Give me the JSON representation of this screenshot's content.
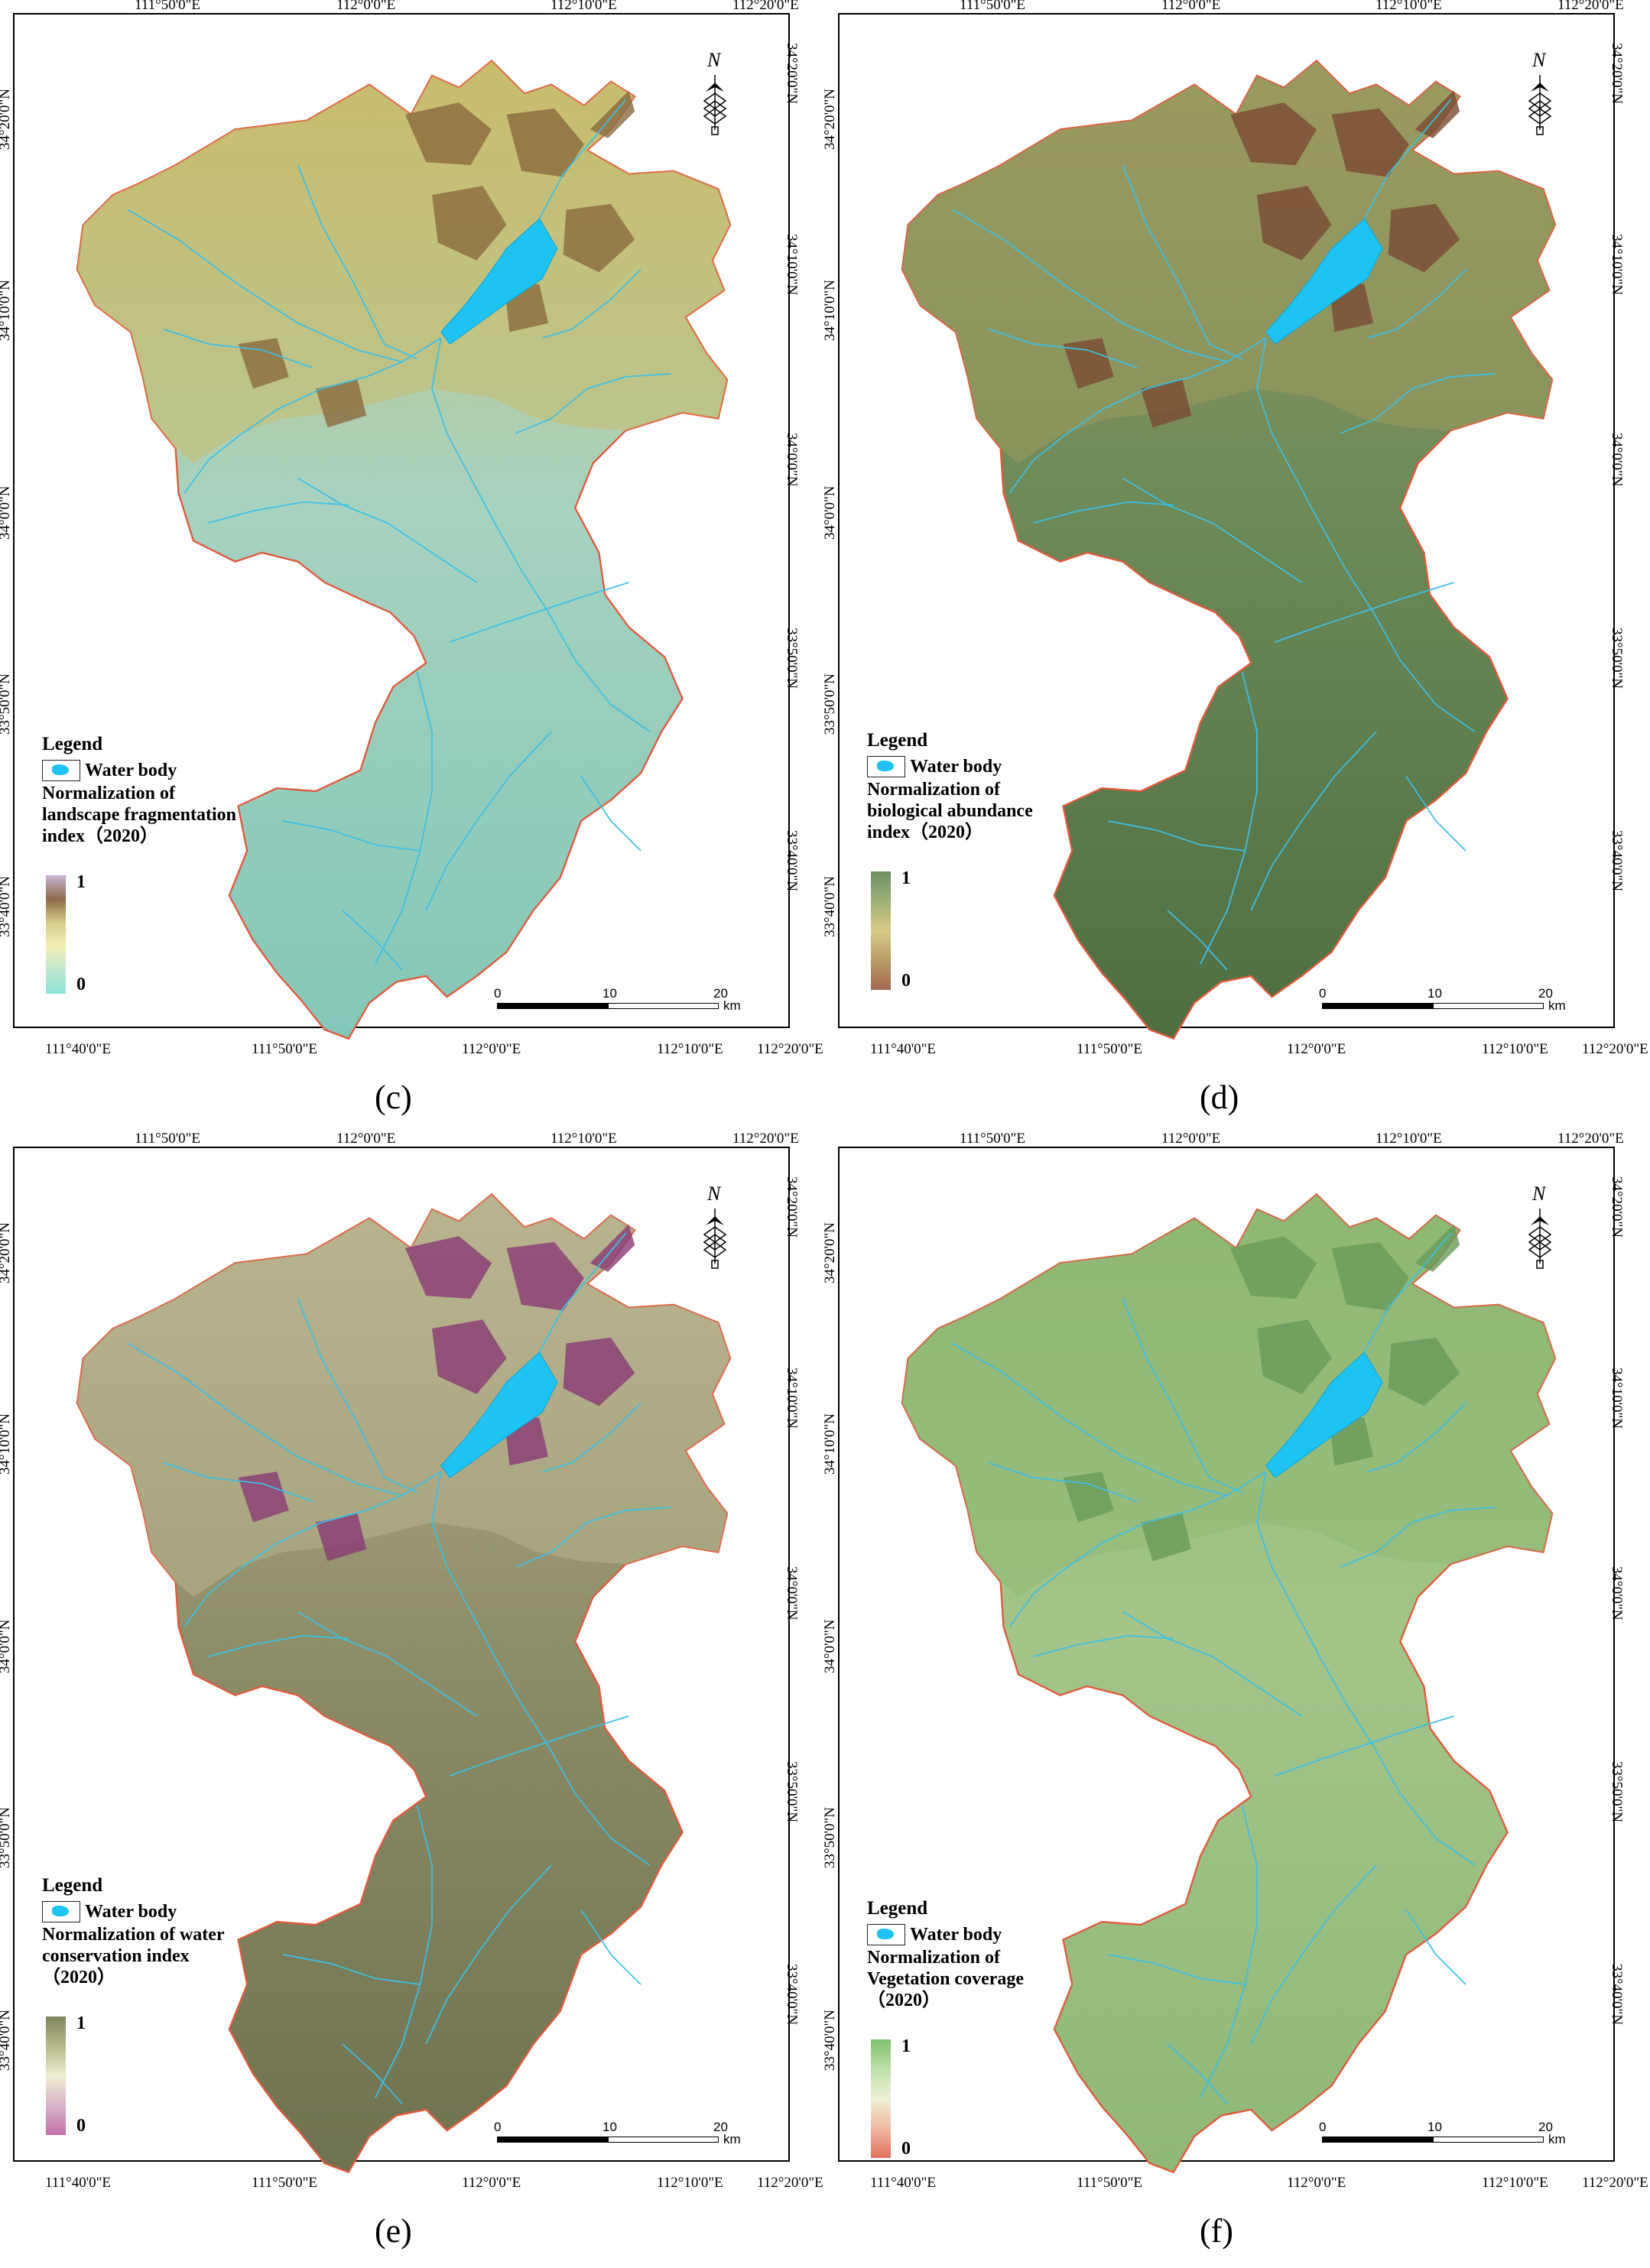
{
  "common": {
    "lon_ticks_top": [
      "111°50'0\"E",
      "112°0'0\"E",
      "112°10'0\"E",
      "112°20'0\"E"
    ],
    "lon_ticks_bottom": [
      "111°40'0\"E",
      "111°50'0\"E",
      "112°0'0\"E",
      "112°10'0\"E",
      "112°20'0\"E"
    ],
    "lat_ticks_left": [
      "34°20'0\"N",
      "34°10'0\"N",
      "34°0'0\"N",
      "33°50'0\"N",
      "33°40'0\"N"
    ],
    "lat_ticks_right": [
      "34°20'0\"N",
      "34°10'0\"N",
      "34°0'0\"N",
      "33°50'0\"N",
      "33°40'0\"N"
    ],
    "legend_title": "Legend",
    "water_body_label": "Water body",
    "north_label": "N",
    "scale": {
      "labels": [
        "0",
        "10",
        "20"
      ],
      "unit": "km"
    }
  },
  "colors": {
    "water": "#1ec3f2",
    "river": "#3cc0e6",
    "boundary": "#e05a3c"
  },
  "panels": [
    {
      "caption": "(c)",
      "index_line1": "Normalization of",
      "index_line2": "landscape fragmentation",
      "index_line3": "index（2020）",
      "ramp_high": "1",
      "ramp_low": "0",
      "ramp_colors": [
        "#c8b6d8",
        "#8e6a48",
        "#d4cc8a",
        "#f2efb8",
        "#bfe6d0",
        "#8fe3d6"
      ],
      "map_colors": {
        "north": "#c9bd6e",
        "north_dark": "#8a6a3e",
        "south": "#84c7b8",
        "mid": "#a8d2c0"
      }
    },
    {
      "caption": "(d)",
      "index_line1": "Normalization of",
      "index_line2": "biological abundance",
      "index_line3": "index（2020）",
      "ramp_high": "1",
      "ramp_low": "0",
      "ramp_colors": [
        "#6f8f64",
        "#9faf78",
        "#d8cc88",
        "#b99a6a",
        "#a06850"
      ],
      "map_colors": {
        "north": "#9a9a60",
        "north_dark": "#7a4a32",
        "south": "#4e6e42",
        "mid": "#6e8a58"
      }
    },
    {
      "caption": "(e)",
      "index_line1": "Normalization of water",
      "index_line2": "conservation index",
      "index_line3": "（2020）",
      "ramp_high": "1",
      "ramp_low": "0",
      "ramp_colors": [
        "#7f855c",
        "#b7b98a",
        "#eeeed2",
        "#d8b4c8",
        "#c272a6"
      ],
      "map_colors": {
        "north": "#b8b490",
        "north_dark": "#8a3a74",
        "south": "#6f7250",
        "mid": "#8e8e68"
      }
    },
    {
      "caption": "(f)",
      "index_line1": "Normalization of",
      "index_line2": "Vegetation coverage",
      "index_line3": "（2020）",
      "ramp_high": "1",
      "ramp_low": "0",
      "ramp_colors": [
        "#7cc070",
        "#bfe0a8",
        "#eef0d8",
        "#f0b8a0",
        "#e07060"
      ],
      "map_colors": {
        "north": "#8fb874",
        "north_dark": "#6a9a5a",
        "south": "#90b878",
        "mid": "#a4c48a"
      }
    }
  ]
}
